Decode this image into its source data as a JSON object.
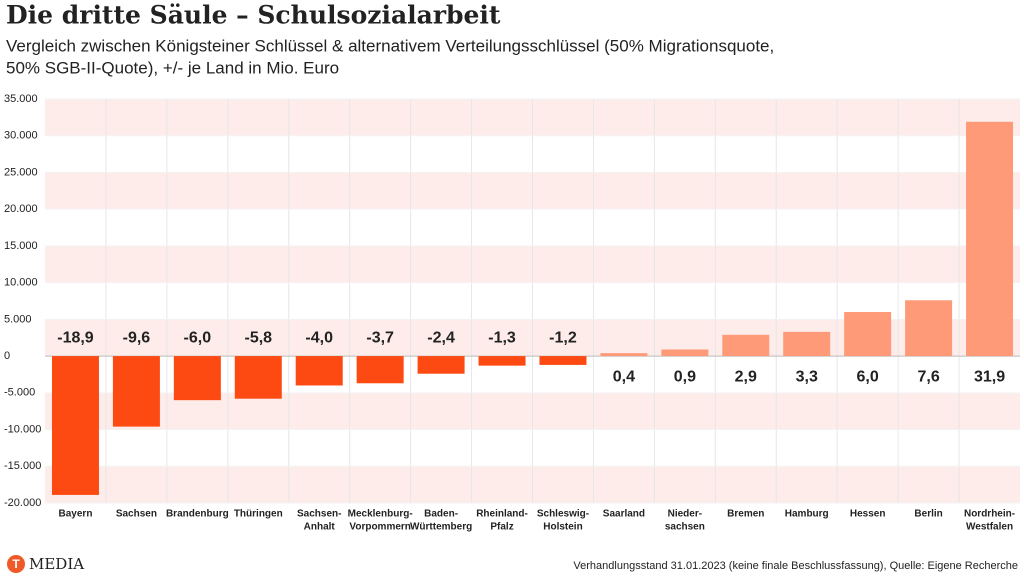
{
  "chart_data": {
    "type": "bar",
    "title": "Die dritte Säule – Schulsozialarbeit",
    "subtitle": [
      "Vergleich zwischen Königsteiner Schlüssel & alternativem Verteilungsschlüssel (50% Migrationsquote,",
      "50% SGB-II-Quote), +/- je Land in Mio. Euro"
    ],
    "categories": [
      [
        "Bayern"
      ],
      [
        "Sachsen"
      ],
      [
        "Brandenburg"
      ],
      [
        "Thüringen"
      ],
      [
        "Sachsen-",
        "Anhalt"
      ],
      [
        "Mecklenburg-",
        "Vorpommern"
      ],
      [
        "Baden-",
        "Württemberg"
      ],
      [
        "Rheinland-",
        "Pfalz"
      ],
      [
        "Schleswig-",
        "Holstein"
      ],
      [
        "Saarland"
      ],
      [
        "Nieder-",
        "sachsen"
      ],
      [
        "Bremen"
      ],
      [
        "Hamburg"
      ],
      [
        "Hessen"
      ],
      [
        "Berlin"
      ],
      [
        "Nordrhein-",
        "Westfalen"
      ]
    ],
    "values": [
      -18900,
      -9600,
      -6000,
      -5800,
      -4000,
      -3700,
      -2400,
      -1300,
      -1200,
      400,
      900,
      2900,
      3300,
      6000,
      7600,
      31900
    ],
    "value_labels": [
      "-18,9",
      "-9,6",
      "-6,0",
      "-5,8",
      "-4,0",
      "-3,7",
      "-2,4",
      "-1,3",
      "-1,2",
      "0,4",
      "0,9",
      "2,9",
      "3,3",
      "6,0",
      "7,6",
      "31,9"
    ],
    "color_negative": "#fc4a12",
    "color_positive": "#fe9a78",
    "ylim": [
      -20000,
      35000
    ],
    "yticks": [
      {
        "value": -20000,
        "label": "-20.000"
      },
      {
        "value": -15000,
        "label": "-15.000"
      },
      {
        "value": -10000,
        "label": "-10.000"
      },
      {
        "value": -5000,
        "label": "-5.000"
      },
      0,
      {
        "value": 5000,
        "label": "5.000"
      },
      {
        "value": 10000,
        "label": "10.000"
      },
      {
        "value": 15000,
        "label": "15.000"
      },
      {
        "value": 20000,
        "label": "20.000"
      },
      {
        "value": 25000,
        "label": "25.000"
      },
      {
        "value": 30000,
        "label": "30.000"
      },
      {
        "value": 35000,
        "label": "35.000"
      }
    ],
    "grid": true,
    "logo": "MEDIA",
    "source": "Verhandlungsstand 31.01.2023 (keine finale Beschlussfassung), Quelle: Eigene Recherche"
  }
}
